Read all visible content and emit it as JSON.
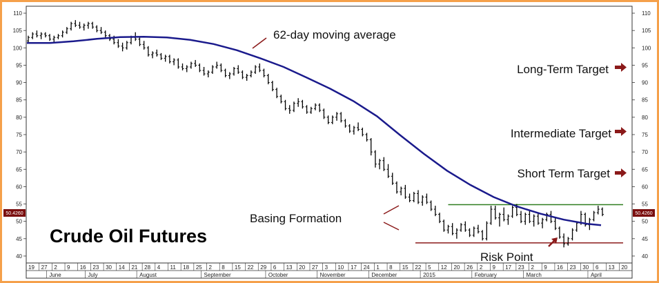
{
  "chart_data": {
    "type": "line",
    "title": "Crude Oil Futures",
    "ylim": [
      38,
      112
    ],
    "y_ticks": [
      40,
      45,
      50,
      55,
      60,
      65,
      70,
      75,
      80,
      85,
      90,
      95,
      100,
      105,
      110
    ],
    "last_price_label": "50.4260",
    "x_day_labels": [
      "19",
      "27",
      "2",
      "9",
      "16",
      "23",
      "30",
      "14",
      "21",
      "28",
      "4",
      "11",
      "18",
      "25",
      "2",
      "8",
      "15",
      "22",
      "29",
      "6",
      "13",
      "20",
      "27",
      "3",
      "10",
      "17",
      "24",
      "1",
      "8",
      "15",
      "22",
      "5",
      "12",
      "20",
      "26",
      "2",
      "9",
      "17",
      "23",
      "2",
      "9",
      "16",
      "23",
      "30",
      "6",
      "13",
      "20"
    ],
    "x_month_labels": [
      "June",
      "July",
      "August",
      "September",
      "October",
      "November",
      "December",
      "2015",
      "February",
      "March",
      "April"
    ],
    "series": [
      {
        "name": "62-day moving average",
        "color": "#1a1a8c",
        "points": [
          [
            0,
            101.4
          ],
          [
            10,
            101.4
          ],
          [
            20,
            101.9
          ],
          [
            30,
            102.6
          ],
          [
            40,
            103.1
          ],
          [
            50,
            103.2
          ],
          [
            60,
            103.0
          ],
          [
            70,
            102.3
          ],
          [
            80,
            101.1
          ],
          [
            90,
            99.3
          ],
          [
            100,
            97.0
          ],
          [
            110,
            94.5
          ],
          [
            120,
            91.4
          ],
          [
            130,
            88.2
          ],
          [
            140,
            84.6
          ],
          [
            150,
            80.3
          ],
          [
            160,
            74.8
          ],
          [
            170,
            69.5
          ],
          [
            180,
            64.6
          ],
          [
            190,
            60.5
          ],
          [
            200,
            57.0
          ],
          [
            210,
            54.3
          ],
          [
            220,
            52.2
          ],
          [
            230,
            50.5
          ],
          [
            240,
            49.3
          ],
          [
            246,
            48.9
          ]
        ]
      }
    ],
    "ohlc_bars": [
      [
        0,
        102.0,
        103.5,
        101.5,
        103.0
      ],
      [
        1,
        103.0,
        104.5,
        102.5,
        104.0
      ],
      [
        2,
        104.0,
        105.0,
        103.0,
        103.5
      ],
      [
        3,
        103.5,
        104.5,
        102.5,
        104.0
      ],
      [
        4,
        104.0,
        104.5,
        103.0,
        103.5
      ],
      [
        5,
        103.5,
        104.0,
        102.0,
        102.5
      ],
      [
        6,
        102.5,
        103.5,
        101.5,
        103.0
      ],
      [
        7,
        103.0,
        104.0,
        102.5,
        103.5
      ],
      [
        8,
        103.5,
        105.0,
        103.0,
        104.5
      ],
      [
        9,
        104.5,
        106.0,
        104.0,
        105.5
      ],
      [
        10,
        105.5,
        107.5,
        105.0,
        107.0
      ],
      [
        11,
        107.0,
        108.0,
        106.0,
        106.5
      ],
      [
        12,
        106.5,
        107.5,
        105.5,
        106.0
      ],
      [
        13,
        106.0,
        107.0,
        105.0,
        106.5
      ],
      [
        14,
        106.5,
        107.5,
        105.5,
        107.0
      ],
      [
        15,
        107.0,
        107.5,
        105.5,
        106.0
      ],
      [
        16,
        106.0,
        106.5,
        104.5,
        105.0
      ],
      [
        17,
        105.0,
        106.0,
        104.0,
        104.5
      ],
      [
        18,
        104.5,
        105.0,
        103.0,
        103.5
      ],
      [
        19,
        103.5,
        104.0,
        102.0,
        102.5
      ],
      [
        20,
        102.5,
        103.5,
        101.0,
        101.5
      ],
      [
        21,
        101.5,
        102.5,
        100.0,
        100.5
      ],
      [
        22,
        100.5,
        101.5,
        99.0,
        100.0
      ],
      [
        23,
        100.0,
        102.0,
        99.5,
        101.5
      ],
      [
        24,
        101.5,
        103.5,
        101.0,
        103.0
      ],
      [
        25,
        103.0,
        104.5,
        102.0,
        102.5
      ],
      [
        26,
        102.5,
        103.0,
        100.5,
        101.0
      ],
      [
        27,
        101.0,
        102.0,
        99.5,
        100.0
      ],
      [
        28,
        100.0,
        100.5,
        97.5,
        98.0
      ],
      [
        29,
        98.0,
        99.0,
        97.0,
        98.5
      ],
      [
        30,
        98.5,
        99.5,
        97.5,
        98.0
      ],
      [
        31,
        98.0,
        98.5,
        96.5,
        97.0
      ],
      [
        32,
        97.0,
        98.0,
        96.0,
        97.5
      ],
      [
        33,
        97.5,
        98.0,
        95.5,
        96.0
      ],
      [
        34,
        96.0,
        97.0,
        95.0,
        96.5
      ],
      [
        35,
        96.5,
        97.0,
        94.0,
        94.5
      ],
      [
        36,
        94.5,
        95.5,
        93.5,
        94.0
      ],
      [
        37,
        94.0,
        95.0,
        93.0,
        94.5
      ],
      [
        38,
        94.5,
        96.0,
        94.0,
        95.5
      ],
      [
        39,
        95.5,
        96.5,
        94.5,
        95.0
      ],
      [
        40,
        95.0,
        95.5,
        93.0,
        93.5
      ],
      [
        41,
        93.5,
        94.5,
        92.0,
        92.5
      ],
      [
        42,
        92.5,
        93.5,
        91.5,
        93.0
      ],
      [
        43,
        93.0,
        95.0,
        92.5,
        94.5
      ],
      [
        44,
        94.5,
        96.0,
        94.0,
        95.0
      ],
      [
        45,
        95.0,
        95.5,
        93.0,
        93.5
      ],
      [
        46,
        93.5,
        94.0,
        91.5,
        92.0
      ],
      [
        47,
        92.0,
        93.0,
        91.0,
        92.5
      ],
      [
        48,
        92.5,
        94.5,
        92.0,
        94.0
      ],
      [
        49,
        94.0,
        95.0,
        92.5,
        93.0
      ],
      [
        50,
        93.0,
        93.5,
        91.0,
        91.5
      ],
      [
        51,
        91.5,
        92.5,
        90.5,
        92.0
      ],
      [
        52,
        92.0,
        93.5,
        91.5,
        93.0
      ],
      [
        53,
        93.0,
        95.0,
        92.5,
        94.5
      ],
      [
        54,
        94.5,
        95.5,
        93.0,
        93.5
      ],
      [
        55,
        93.5,
        94.0,
        91.5,
        92.0
      ],
      [
        56,
        92.0,
        92.5,
        89.5,
        90.0
      ],
      [
        57,
        90.0,
        90.5,
        87.5,
        88.0
      ],
      [
        58,
        88.0,
        88.5,
        85.5,
        86.0
      ],
      [
        59,
        86.0,
        86.5,
        84.0,
        84.5
      ],
      [
        60,
        84.5,
        85.0,
        82.0,
        82.5
      ],
      [
        61,
        82.5,
        83.5,
        81.0,
        82.0
      ],
      [
        62,
        82.0,
        84.5,
        81.5,
        84.0
      ],
      [
        63,
        84.0,
        85.5,
        83.0,
        84.5
      ],
      [
        64,
        84.5,
        85.0,
        82.5,
        83.0
      ],
      [
        65,
        83.0,
        83.5,
        81.0,
        81.5
      ],
      [
        66,
        81.5,
        83.0,
        81.0,
        82.5
      ],
      [
        67,
        82.5,
        84.0,
        82.0,
        83.5
      ],
      [
        68,
        83.5,
        84.0,
        81.5,
        82.0
      ],
      [
        69,
        82.0,
        82.5,
        79.5,
        80.0
      ],
      [
        70,
        80.0,
        80.5,
        78.0,
        78.5
      ],
      [
        71,
        78.5,
        80.5,
        78.0,
        80.0
      ],
      [
        72,
        80.0,
        81.5,
        79.0,
        81.0
      ],
      [
        73,
        81.0,
        81.5,
        78.5,
        79.0
      ],
      [
        74,
        79.0,
        79.5,
        77.0,
        77.5
      ],
      [
        75,
        77.5,
        78.0,
        75.5,
        76.0
      ],
      [
        76,
        76.0,
        77.5,
        75.0,
        77.0
      ],
      [
        77,
        77.0,
        78.5,
        76.0,
        76.5
      ],
      [
        78,
        76.5,
        77.0,
        74.5,
        75.0
      ],
      [
        79,
        75.0,
        75.5,
        73.0,
        73.5
      ],
      [
        80,
        73.5,
        74.0,
        69.0,
        70.0
      ],
      [
        81,
        70.0,
        70.5,
        65.5,
        66.5
      ],
      [
        82,
        66.5,
        68.0,
        65.0,
        67.5
      ],
      [
        83,
        67.5,
        68.5,
        64.5,
        65.0
      ],
      [
        84,
        65.0,
        66.5,
        62.5,
        63.0
      ],
      [
        85,
        63.0,
        64.0,
        60.5,
        61.0
      ],
      [
        86,
        61.0,
        61.5,
        58.0,
        58.5
      ],
      [
        87,
        58.5,
        60.0,
        57.5,
        59.5
      ],
      [
        88,
        59.5,
        60.5,
        56.5,
        57.0
      ],
      [
        89,
        57.0,
        58.0,
        55.5,
        56.0
      ],
      [
        90,
        56.0,
        58.5,
        55.5,
        58.0
      ],
      [
        91,
        58.0,
        59.0,
        55.0,
        55.5
      ],
      [
        92,
        55.5,
        57.5,
        54.5,
        57.0
      ],
      [
        93,
        57.0,
        58.0,
        55.0,
        55.5
      ],
      [
        94,
        55.5,
        56.0,
        53.0,
        53.5
      ],
      [
        95,
        53.5,
        54.5,
        51.5,
        52.0
      ],
      [
        96,
        52.0,
        52.5,
        49.5,
        50.0
      ],
      [
        97,
        50.0,
        50.5,
        47.0,
        47.5
      ],
      [
        98,
        47.5,
        49.0,
        46.5,
        48.5
      ],
      [
        99,
        48.5,
        49.5,
        46.0,
        46.5
      ],
      [
        100,
        46.5,
        48.0,
        45.0,
        47.5
      ],
      [
        101,
        47.5,
        49.5,
        47.0,
        49.0
      ],
      [
        102,
        49.0,
        50.0,
        47.0,
        47.5
      ],
      [
        103,
        47.5,
        48.0,
        45.5,
        46.0
      ],
      [
        104,
        46.0,
        48.5,
        45.5,
        48.0
      ],
      [
        105,
        48.0,
        49.0,
        46.5,
        47.0
      ],
      [
        106,
        47.0,
        47.5,
        44.5,
        45.0
      ],
      [
        107,
        45.0,
        50.0,
        44.5,
        49.5
      ],
      [
        108,
        49.5,
        54.5,
        49.0,
        53.5
      ],
      [
        109,
        53.5,
        54.5,
        50.5,
        51.0
      ],
      [
        110,
        51.0,
        52.5,
        48.5,
        52.0
      ],
      [
        111,
        52.0,
        54.0,
        50.0,
        50.5
      ],
      [
        112,
        50.5,
        52.0,
        49.0,
        51.5
      ],
      [
        113,
        51.5,
        54.5,
        51.0,
        54.0
      ],
      [
        114,
        54.0,
        55.0,
        51.5,
        52.0
      ],
      [
        115,
        52.0,
        53.0,
        49.5,
        50.0
      ],
      [
        116,
        50.0,
        52.5,
        49.0,
        52.0
      ],
      [
        117,
        52.0,
        53.0,
        49.5,
        50.0
      ],
      [
        118,
        50.0,
        52.0,
        48.5,
        51.5
      ],
      [
        119,
        51.5,
        52.5,
        49.0,
        49.5
      ],
      [
        120,
        49.5,
        51.0,
        48.0,
        50.5
      ],
      [
        121,
        50.5,
        52.5,
        50.0,
        52.0
      ],
      [
        122,
        52.0,
        53.0,
        49.5,
        50.0
      ],
      [
        123,
        50.0,
        51.0,
        47.5,
        48.0
      ],
      [
        124,
        48.0,
        48.5,
        45.0,
        45.5
      ],
      [
        125,
        45.5,
        46.5,
        42.5,
        43.5
      ],
      [
        126,
        43.5,
        45.5,
        43.0,
        45.0
      ],
      [
        127,
        45.0,
        48.0,
        44.5,
        47.5
      ],
      [
        128,
        47.5,
        50.0,
        47.0,
        49.5
      ],
      [
        129,
        49.5,
        53.0,
        49.0,
        52.0
      ],
      [
        130,
        52.0,
        52.5,
        48.5,
        49.0
      ],
      [
        131,
        49.0,
        51.0,
        47.5,
        50.5
      ],
      [
        132,
        50.5,
        53.0,
        50.0,
        52.5
      ],
      [
        133,
        52.5,
        54.5,
        52.0,
        53.5
      ],
      [
        134,
        53.5,
        54.0,
        51.5,
        52.0
      ]
    ],
    "horizontal_lines": [
      {
        "name": "resistance",
        "value": 54.8,
        "color": "#2e7d1e"
      },
      {
        "name": "support",
        "value": 43.8,
        "color": "#8b1a1a"
      }
    ],
    "annotations": {
      "ma_label": "62-day moving average",
      "basing": "Basing Formation",
      "risk": "Risk Point",
      "long_target": "Long-Term Target",
      "intermediate_target": "Intermediate Target",
      "short_target": "Short Term Target"
    },
    "grid": false
  }
}
